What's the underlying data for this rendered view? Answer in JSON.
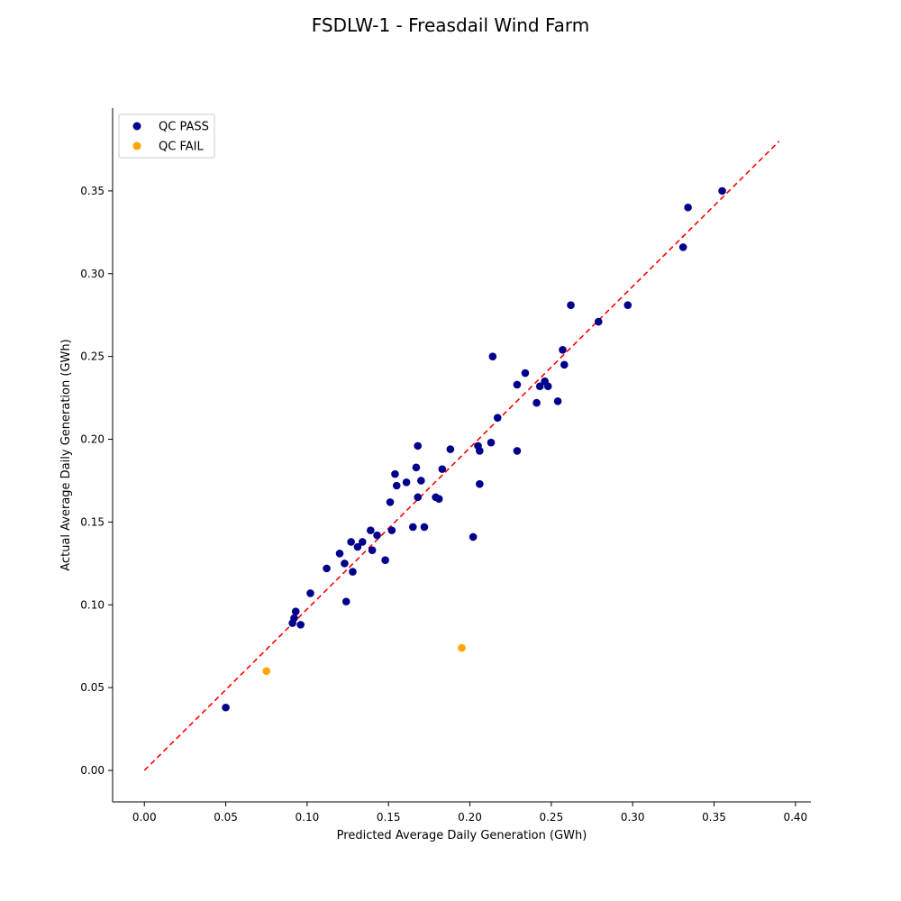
{
  "chart_data": {
    "type": "scatter",
    "title": "FSDLW-1 - Freasdail Wind Farm",
    "xlabel": "Predicted Average Daily Generation (GWh)",
    "ylabel": "Actual Average Daily Generation (GWh)",
    "xlim": [
      -0.0195,
      0.4095
    ],
    "ylim": [
      -0.019,
      0.4
    ],
    "xticks": [
      "0.00",
      "0.05",
      "0.10",
      "0.15",
      "0.20",
      "0.25",
      "0.30",
      "0.35",
      "0.40"
    ],
    "yticks": [
      "0.00",
      "0.05",
      "0.10",
      "0.15",
      "0.20",
      "0.25",
      "0.30",
      "0.35"
    ],
    "grid": false,
    "legend_position": "top-left",
    "reference_line": {
      "style": "dashed",
      "color": "#ff0000",
      "from": [
        0.0,
        0.0
      ],
      "to": [
        0.39,
        0.38
      ]
    },
    "series": [
      {
        "name": "QC PASS",
        "color": "#00008b",
        "points": [
          [
            0.05,
            0.038
          ],
          [
            0.091,
            0.089
          ],
          [
            0.092,
            0.092
          ],
          [
            0.093,
            0.096
          ],
          [
            0.096,
            0.088
          ],
          [
            0.102,
            0.107
          ],
          [
            0.112,
            0.122
          ],
          [
            0.12,
            0.131
          ],
          [
            0.123,
            0.125
          ],
          [
            0.124,
            0.102
          ],
          [
            0.127,
            0.138
          ],
          [
            0.128,
            0.12
          ],
          [
            0.131,
            0.135
          ],
          [
            0.134,
            0.138
          ],
          [
            0.139,
            0.145
          ],
          [
            0.14,
            0.133
          ],
          [
            0.143,
            0.142
          ],
          [
            0.148,
            0.127
          ],
          [
            0.151,
            0.162
          ],
          [
            0.152,
            0.145
          ],
          [
            0.154,
            0.179
          ],
          [
            0.155,
            0.172
          ],
          [
            0.161,
            0.174
          ],
          [
            0.165,
            0.147
          ],
          [
            0.167,
            0.183
          ],
          [
            0.168,
            0.196
          ],
          [
            0.168,
            0.165
          ],
          [
            0.17,
            0.175
          ],
          [
            0.172,
            0.147
          ],
          [
            0.179,
            0.165
          ],
          [
            0.181,
            0.164
          ],
          [
            0.183,
            0.182
          ],
          [
            0.188,
            0.194
          ],
          [
            0.202,
            0.141
          ],
          [
            0.205,
            0.196
          ],
          [
            0.206,
            0.193
          ],
          [
            0.206,
            0.173
          ],
          [
            0.213,
            0.198
          ],
          [
            0.214,
            0.25
          ],
          [
            0.217,
            0.213
          ],
          [
            0.229,
            0.193
          ],
          [
            0.229,
            0.233
          ],
          [
            0.234,
            0.24
          ],
          [
            0.241,
            0.222
          ],
          [
            0.243,
            0.232
          ],
          [
            0.246,
            0.235
          ],
          [
            0.248,
            0.232
          ],
          [
            0.254,
            0.223
          ],
          [
            0.257,
            0.254
          ],
          [
            0.258,
            0.245
          ],
          [
            0.262,
            0.281
          ],
          [
            0.279,
            0.271
          ],
          [
            0.297,
            0.281
          ],
          [
            0.331,
            0.316
          ],
          [
            0.334,
            0.34
          ],
          [
            0.355,
            0.35
          ]
        ]
      },
      {
        "name": "QC FAIL",
        "color": "#ffa500",
        "points": [
          [
            0.075,
            0.06
          ],
          [
            0.195,
            0.074
          ]
        ]
      }
    ]
  }
}
